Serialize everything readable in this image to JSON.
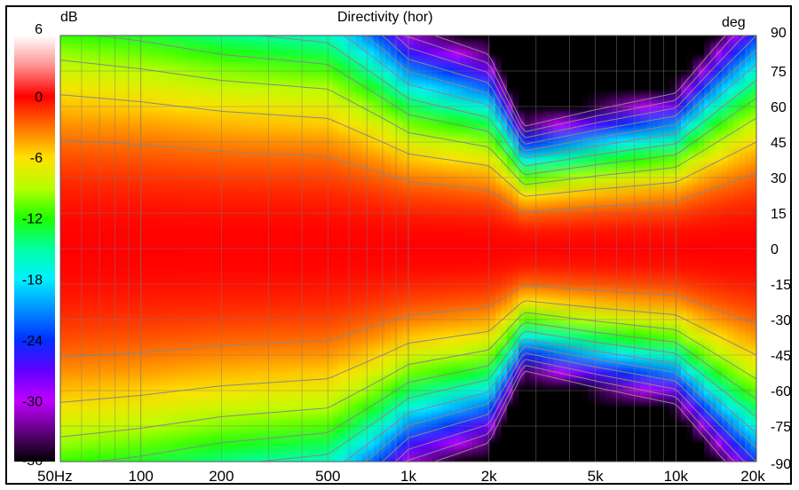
{
  "chart_data": {
    "type": "heatmap",
    "title": "Directivity (hor)",
    "colorbar": {
      "unit": "dB",
      "ticks": [
        "6",
        "0",
        "-6",
        "-12",
        "-18",
        "-24",
        "-30",
        "-36"
      ],
      "range": [
        -36,
        6
      ],
      "stops": [
        {
          "db": 6,
          "color": "#ffffff"
        },
        {
          "db": 3,
          "color": "#ff9090"
        },
        {
          "db": 0,
          "color": "#ff0000"
        },
        {
          "db": -3,
          "color": "#ff7000"
        },
        {
          "db": -6,
          "color": "#ffe000"
        },
        {
          "db": -9,
          "color": "#b8ff00"
        },
        {
          "db": -12,
          "color": "#20ff00"
        },
        {
          "db": -15,
          "color": "#00ffa0"
        },
        {
          "db": -18,
          "color": "#00f0ff"
        },
        {
          "db": -21,
          "color": "#0090ff"
        },
        {
          "db": -24,
          "color": "#0030ff"
        },
        {
          "db": -27,
          "color": "#6000ff"
        },
        {
          "db": -30,
          "color": "#c000ff"
        },
        {
          "db": -33,
          "color": "#600080"
        },
        {
          "db": -36,
          "color": "#000000"
        }
      ]
    },
    "x_axis": {
      "scale": "log",
      "range": [
        50,
        20000
      ],
      "ticks": [
        {
          "value": 50,
          "label": "50Hz"
        },
        {
          "value": 100,
          "label": "100"
        },
        {
          "value": 200,
          "label": "200"
        },
        {
          "value": 500,
          "label": "500"
        },
        {
          "value": 1000,
          "label": "1k"
        },
        {
          "value": 2000,
          "label": "2k"
        },
        {
          "value": 5000,
          "label": "5k"
        },
        {
          "value": 10000,
          "label": "10k"
        },
        {
          "value": 20000,
          "label": "20k"
        }
      ]
    },
    "y_axis": {
      "unit": "deg",
      "range": [
        -90,
        90
      ],
      "ticks": [
        "90",
        "75",
        "60",
        "45",
        "30",
        "15",
        "0",
        "-15",
        "-30",
        "-45",
        "-60",
        "-75",
        "-90"
      ]
    },
    "grid": true,
    "beamwidth_minus6db_deg": {
      "freq": [
        50,
        100,
        200,
        500,
        800,
        1000,
        2000,
        2700,
        5000,
        10000,
        20000
      ],
      "angle": [
        65,
        62,
        58,
        55,
        45,
        40,
        35,
        22,
        25,
        28,
        45
      ]
    }
  }
}
